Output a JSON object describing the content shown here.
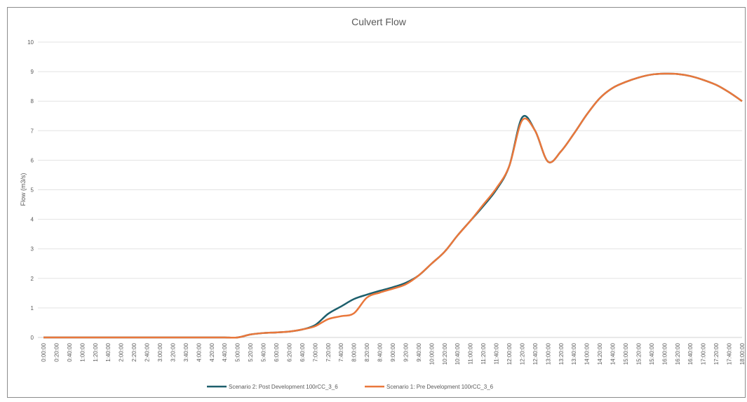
{
  "chart_data": {
    "type": "line",
    "title": "Culvert Flow",
    "y_label": "Flow (m3/s)",
    "categories": [
      "0:00:00",
      "0:20:00",
      "0:40:00",
      "1:00:00",
      "1:20:00",
      "1:40:00",
      "2:00:00",
      "2:20:00",
      "2:40:00",
      "3:00:00",
      "3:20:00",
      "3:40:00",
      "4:00:00",
      "4:20:00",
      "4:40:00",
      "5:00:00",
      "5:20:00",
      "5:40:00",
      "6:00:00",
      "6:20:00",
      "6:40:00",
      "7:00:00",
      "7:20:00",
      "7:40:00",
      "8:00:00",
      "8:20:00",
      "8:40:00",
      "9:00:00",
      "9:20:00",
      "9:40:00",
      "10:00:00",
      "10:20:00",
      "10:40:00",
      "11:00:00",
      "11:20:00",
      "11:40:00",
      "12:00:00",
      "12:20:00",
      "12:40:00",
      "13:00:00",
      "13:20:00",
      "13:40:00",
      "14:00:00",
      "14:20:00",
      "14:40:00",
      "15:00:00",
      "15:20:00",
      "15:40:00",
      "16:00:00",
      "16:20:00",
      "16:40:00",
      "17:00:00",
      "17:20:00",
      "17:40:00",
      "18:00:00"
    ],
    "series": [
      {
        "name": "Scenario 2: Post Development 100rCC_3_6",
        "color": "#1d5f6c",
        "values": [
          0,
          0,
          0,
          0,
          0,
          0,
          0,
          0,
          0,
          0,
          0,
          0,
          0,
          0,
          0,
          0,
          0.1,
          0.15,
          0.17,
          0.2,
          0.27,
          0.42,
          0.8,
          1.05,
          1.3,
          1.45,
          1.58,
          1.7,
          1.85,
          2.1,
          2.5,
          2.9,
          3.45,
          3.95,
          4.45,
          5.0,
          5.8,
          7.45,
          7.0,
          5.95,
          6.3,
          6.9,
          7.55,
          8.1,
          8.45,
          8.65,
          8.8,
          8.9,
          8.93,
          8.92,
          8.85,
          8.72,
          8.55,
          8.3,
          8.0
        ]
      },
      {
        "name": "Scenario 1: Pre Development 100rCC_3_6",
        "color": "#e9773b",
        "values": [
          0,
          0,
          0,
          0,
          0,
          0,
          0,
          0,
          0,
          0,
          0,
          0,
          0,
          0,
          0,
          0,
          0.1,
          0.15,
          0.17,
          0.2,
          0.27,
          0.38,
          0.62,
          0.72,
          0.82,
          1.35,
          1.52,
          1.65,
          1.8,
          2.1,
          2.5,
          2.9,
          3.45,
          3.95,
          4.5,
          5.05,
          5.8,
          7.35,
          7.0,
          5.95,
          6.3,
          6.9,
          7.55,
          8.1,
          8.45,
          8.65,
          8.8,
          8.9,
          8.93,
          8.92,
          8.85,
          8.72,
          8.55,
          8.3,
          8.0
        ]
      }
    ],
    "ylim": [
      0,
      10
    ],
    "yticks": [
      0,
      1,
      2,
      3,
      4,
      5,
      6,
      7,
      8,
      9,
      10
    ],
    "grid": true,
    "legend": "bottom"
  }
}
